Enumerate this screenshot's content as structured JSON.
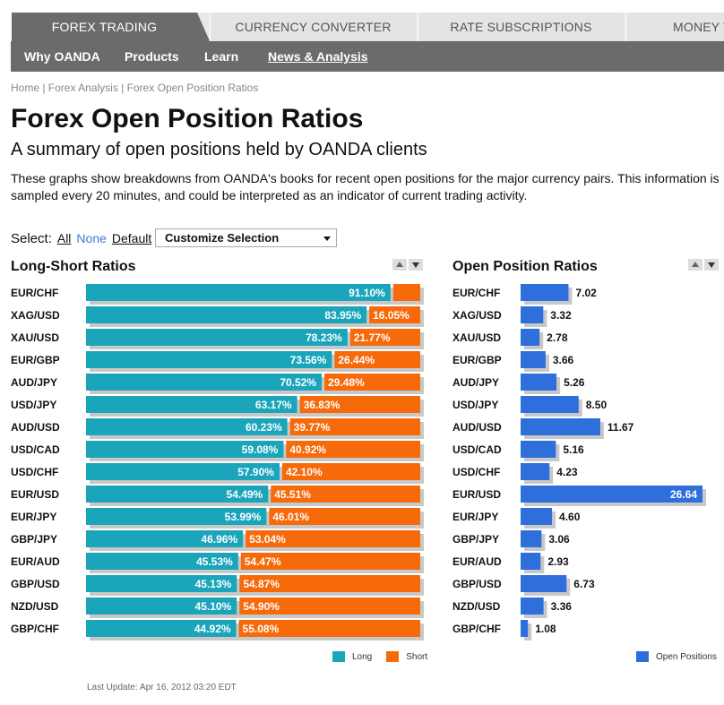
{
  "nav": {
    "tabs": [
      {
        "label": "FOREX TRADING",
        "active": true
      },
      {
        "label": "CURRENCY CONVERTER",
        "active": false
      },
      {
        "label": "RATE SUBSCRIPTIONS",
        "active": false
      },
      {
        "label": "MONEY T",
        "active": false
      }
    ],
    "subnav": [
      {
        "label": "Why OANDA",
        "current": false
      },
      {
        "label": "Products",
        "current": false
      },
      {
        "label": "Learn",
        "current": false
      },
      {
        "label": "News & Analysis",
        "current": true
      }
    ]
  },
  "breadcrumb": "Home | Forex Analysis | Forex Open Position Ratios",
  "page": {
    "title": "Forex Open Position Ratios",
    "subtitle": "A summary of open positions held by OANDA clients",
    "description": "These graphs show breakdowns from OANDA's books for recent open positions for the major currency pairs. This information is sampled every 20 minutes, and could be interpreted as an indicator of current trading activity."
  },
  "select": {
    "label": "Select:",
    "all": "All",
    "none": "None",
    "default": "Default",
    "dropdown_value": "Customize Selection"
  },
  "colors": {
    "long": "#1aa5bb",
    "short": "#f66a0a",
    "open": "#2f6fdb",
    "bar_shadow": "#c8c8c8"
  },
  "chart_data": [
    {
      "type": "bar",
      "orientation": "horizontal-stacked",
      "title": "Long-Short Ratios",
      "categories": [
        "EUR/CHF",
        "XAG/USD",
        "XAU/USD",
        "EUR/GBP",
        "AUD/JPY",
        "USD/JPY",
        "AUD/USD",
        "USD/CAD",
        "USD/CHF",
        "EUR/USD",
        "EUR/JPY",
        "GBP/JPY",
        "EUR/AUD",
        "GBP/USD",
        "NZD/USD",
        "GBP/CHF"
      ],
      "series": [
        {
          "name": "Long",
          "values": [
            91.1,
            83.95,
            78.23,
            73.56,
            70.52,
            63.17,
            60.23,
            59.08,
            57.9,
            54.49,
            53.99,
            46.96,
            45.53,
            45.13,
            45.1,
            44.92
          ]
        },
        {
          "name": "Short",
          "values": [
            8.9,
            16.05,
            21.77,
            26.44,
            29.48,
            36.83,
            39.77,
            40.92,
            42.1,
            45.51,
            46.01,
            53.04,
            54.47,
            54.87,
            54.9,
            55.08
          ]
        }
      ],
      "short_labels_shown": [
        "",
        "16.05%",
        "21.77%",
        "26.44%",
        "29.48%",
        "36.83%",
        "39.77%",
        "40.92%",
        "42.10%",
        "45.51%",
        "46.01%",
        "53.04%",
        "54.47%",
        "54.87%",
        "54.90%",
        "55.08%"
      ],
      "long_labels_shown": [
        "91.10%",
        "83.95%",
        "78.23%",
        "73.56%",
        "70.52%",
        "63.17%",
        "60.23%",
        "59.08%",
        "57.90%",
        "54.49%",
        "53.99%",
        "46.96%",
        "45.53%",
        "45.13%",
        "45.10%",
        "44.92%"
      ],
      "legend": [
        "Long",
        "Short"
      ]
    },
    {
      "type": "bar",
      "orientation": "horizontal",
      "title": "Open Position Ratios",
      "categories": [
        "EUR/CHF",
        "XAG/USD",
        "XAU/USD",
        "EUR/GBP",
        "AUD/JPY",
        "USD/JPY",
        "AUD/USD",
        "USD/CAD",
        "USD/CHF",
        "EUR/USD",
        "EUR/JPY",
        "GBP/JPY",
        "EUR/AUD",
        "GBP/USD",
        "NZD/USD",
        "GBP/CHF"
      ],
      "values": [
        7.02,
        3.32,
        2.78,
        3.66,
        5.26,
        8.5,
        11.67,
        5.16,
        4.23,
        26.64,
        4.6,
        3.06,
        2.93,
        6.73,
        3.36,
        1.08
      ],
      "value_labels": [
        "7.02",
        "3.32",
        "2.78",
        "3.66",
        "5.26",
        "8.50",
        "11.67",
        "5.16",
        "4.23",
        "26.64",
        "4.60",
        "3.06",
        "2.93",
        "6.73",
        "3.36",
        "1.08"
      ],
      "legend": [
        "Open Positions"
      ]
    }
  ],
  "footer": "Last Update: Apr 16, 2012 03:20 EDT"
}
